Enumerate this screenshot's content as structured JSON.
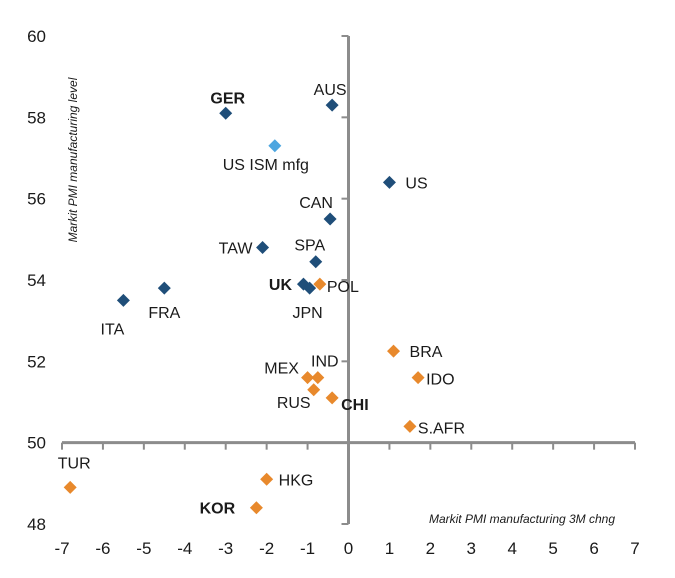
{
  "chart_data": {
    "type": "scatter",
    "xlabel": "Markit PMI manufacturing 3M chng",
    "ylabel": "Markit PMI manufacturing level",
    "xlim": [
      -7,
      7
    ],
    "ylim": [
      48,
      60
    ],
    "xticks": [
      -7,
      -6,
      -5,
      -4,
      -3,
      -2,
      -1,
      0,
      1,
      2,
      3,
      4,
      5,
      6,
      7
    ],
    "yticks": [
      48,
      50,
      52,
      54,
      56,
      58,
      60
    ],
    "grid": false,
    "colors": {
      "developed": "#1f4e79",
      "benchmark": "#4da6e0",
      "emerging": "#e8892c",
      "axis": "#8c8c8c"
    },
    "points": [
      {
        "label": "GER",
        "x": -3.0,
        "y": 58.1,
        "group": "developed",
        "bold": true
      },
      {
        "label": "AUS",
        "x": -0.4,
        "y": 58.3,
        "group": "developed",
        "bold": false
      },
      {
        "label": "US ISM mfg",
        "x": -1.8,
        "y": 57.3,
        "group": "benchmark",
        "bold": false
      },
      {
        "label": "US",
        "x": 1.0,
        "y": 56.4,
        "group": "developed",
        "bold": false
      },
      {
        "label": "CAN",
        "x": -0.45,
        "y": 55.5,
        "group": "developed",
        "bold": false
      },
      {
        "label": "TAW",
        "x": -2.1,
        "y": 54.8,
        "group": "developed",
        "bold": false
      },
      {
        "label": "SPA",
        "x": -0.8,
        "y": 54.45,
        "group": "developed",
        "bold": false
      },
      {
        "label": "UK",
        "x": -1.1,
        "y": 53.9,
        "group": "developed",
        "bold": true
      },
      {
        "label": "POL",
        "x": -0.7,
        "y": 53.9,
        "group": "emerging",
        "bold": false
      },
      {
        "label": "JPN",
        "x": -0.95,
        "y": 53.8,
        "group": "developed",
        "bold": false
      },
      {
        "label": "FRA",
        "x": -4.5,
        "y": 53.8,
        "group": "developed",
        "bold": false
      },
      {
        "label": "ITA",
        "x": -5.5,
        "y": 53.5,
        "group": "developed",
        "bold": false
      },
      {
        "label": "BRA",
        "x": 1.1,
        "y": 52.25,
        "group": "emerging",
        "bold": false
      },
      {
        "label": "IND",
        "x": -0.75,
        "y": 51.6,
        "group": "emerging",
        "bold": false
      },
      {
        "label": "MEX",
        "x": -1.0,
        "y": 51.6,
        "group": "emerging",
        "bold": false
      },
      {
        "label": "IDO",
        "x": 1.7,
        "y": 51.6,
        "group": "emerging",
        "bold": false
      },
      {
        "label": "RUS",
        "x": -0.85,
        "y": 51.3,
        "group": "emerging",
        "bold": false
      },
      {
        "label": "CHI",
        "x": -0.4,
        "y": 51.1,
        "group": "emerging",
        "bold": true
      },
      {
        "label": "S.AFR",
        "x": 1.5,
        "y": 50.4,
        "group": "emerging",
        "bold": false
      },
      {
        "label": "TUR",
        "x": -6.8,
        "y": 48.9,
        "group": "emerging",
        "bold": false
      },
      {
        "label": "HKG",
        "x": -2.0,
        "y": 49.1,
        "group": "emerging",
        "bold": false
      },
      {
        "label": "KOR",
        "x": -2.25,
        "y": 48.4,
        "group": "emerging",
        "bold": true
      }
    ]
  }
}
